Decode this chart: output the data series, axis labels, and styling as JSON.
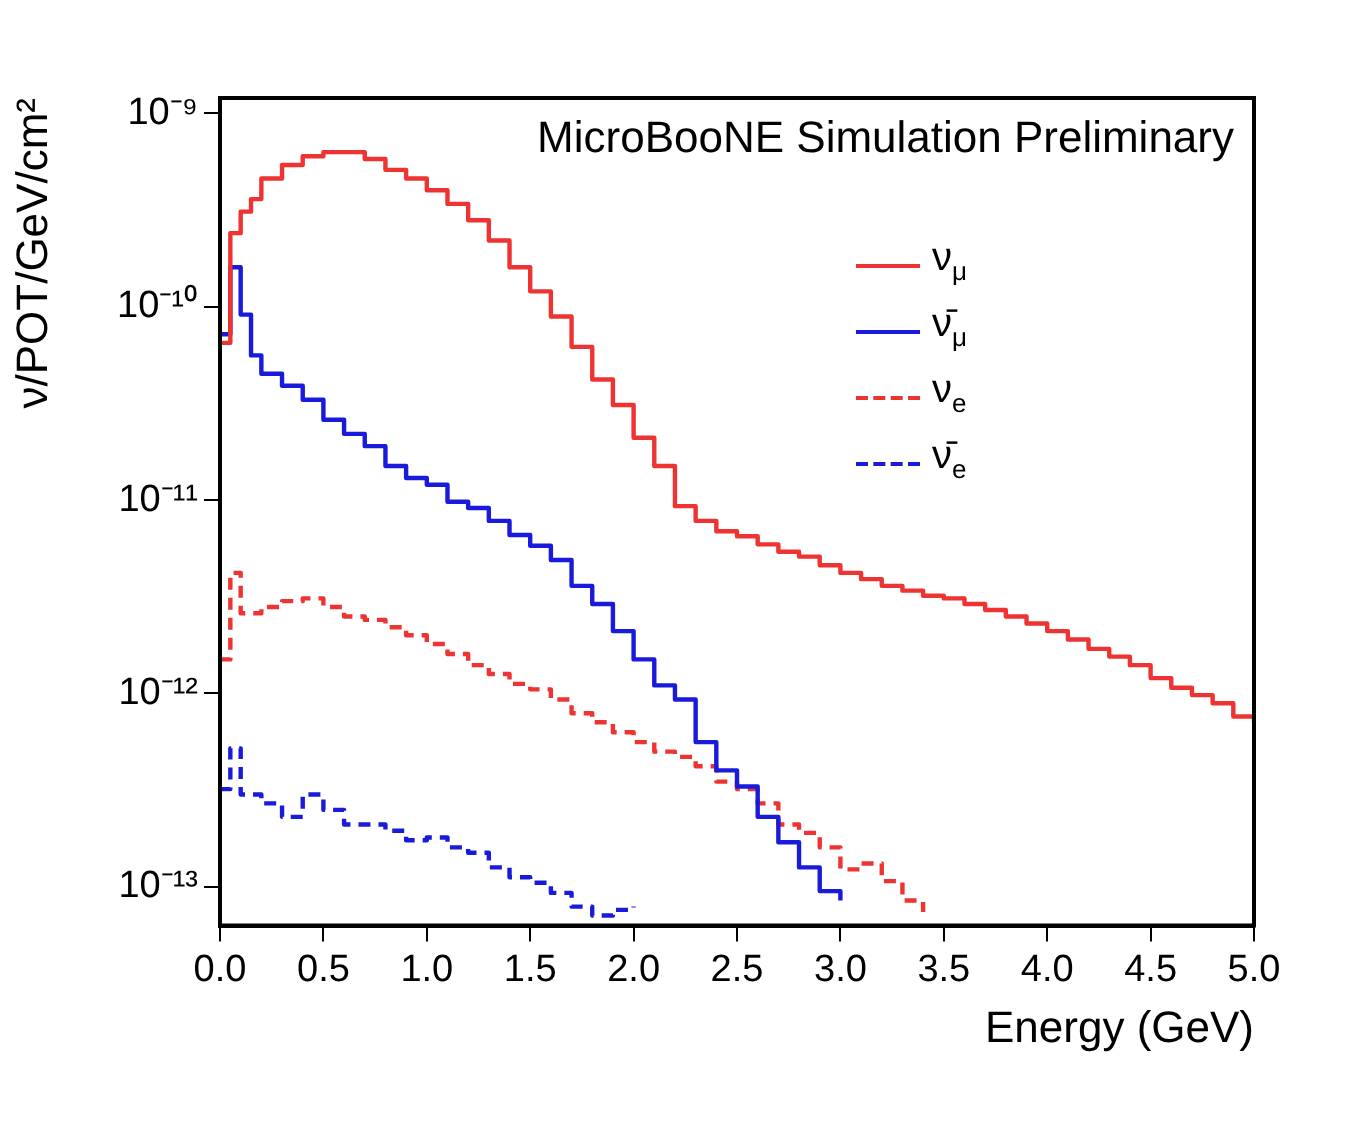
{
  "chart_data": {
    "type": "step",
    "xlabel": "Energy (GeV)",
    "ylabel": "ν/POT/GeV/cm²",
    "log": "y",
    "xlim": [
      0,
      5
    ],
    "ylim": [
      6.3e-14,
      1.2e-09
    ],
    "xticks": [
      {
        "value": 0,
        "label": "0.0"
      },
      0.5,
      {
        "value": 1,
        "label": "1.0"
      },
      1.5,
      {
        "value": 2,
        "label": "2.0"
      },
      2.5,
      {
        "value": 3,
        "label": "3.0"
      },
      3.5,
      {
        "value": 4,
        "label": "4.0"
      },
      4.5,
      {
        "value": 5,
        "label": "5.0"
      }
    ],
    "yticks": [
      {
        "value": 1e-13,
        "label": "10⁻¹³"
      },
      {
        "value": 1e-12,
        "label": "10⁻¹²"
      },
      {
        "value": 1e-11,
        "label": "10⁻¹¹"
      },
      {
        "value": 1e-10,
        "label": "10⁻¹⁰"
      },
      {
        "value": 1e-09,
        "label": "10⁻⁹"
      }
    ],
    "grid": false,
    "legend": "top right",
    "annotations": [
      "MicroBooNE Simulation Preliminary"
    ],
    "series": [
      {
        "name": "ν$_{μ}$",
        "color": "#ee3333",
        "line_style": "solid",
        "x": [
          0,
          0.05,
          0.1,
          0.15,
          0.2,
          0.3,
          0.4,
          0.5,
          0.6,
          0.7,
          0.8,
          0.9,
          1.0,
          1.1,
          1.2,
          1.3,
          1.4,
          1.5,
          1.6,
          1.7,
          1.8,
          1.9,
          2.0,
          2.1,
          2.2,
          2.3,
          2.4,
          2.5,
          2.6,
          2.7,
          2.8,
          2.9,
          3.0,
          3.1,
          3.2,
          3.3,
          3.4,
          3.5,
          3.6,
          3.7,
          3.8,
          3.9,
          4.0,
          4.1,
          4.2,
          4.3,
          4.4,
          4.5,
          4.6,
          4.7,
          4.8,
          4.9,
          5.0
        ],
        "values": [
          6.5e-11,
          2.4e-10,
          3.1e-10,
          3.6e-10,
          4.6e-10,
          5.4e-10,
          6e-10,
          6.3e-10,
          6.3e-10,
          5.8e-10,
          5.1e-10,
          4.6e-10,
          4e-10,
          3.4e-10,
          2.8e-10,
          2.2e-10,
          1.6e-10,
          1.2e-10,
          8.9e-11,
          6.2e-11,
          4.2e-11,
          3.1e-11,
          2.1e-11,
          1.5e-11,
          9.3e-12,
          7.8e-12,
          6.9e-12,
          6.5e-12,
          5.9e-12,
          5.4e-12,
          5.1e-12,
          4.6e-12,
          4.2e-12,
          3.9e-12,
          3.6e-12,
          3.4e-12,
          3.2e-12,
          3.1e-12,
          2.9e-12,
          2.7e-12,
          2.5e-12,
          2.3e-12,
          2.1e-12,
          1.9e-12,
          1.7e-12,
          1.55e-12,
          1.4e-12,
          1.2e-12,
          1.07e-12,
          9.8e-13,
          8.9e-13,
          7.6e-13,
          7.1e-13
        ]
      },
      {
        "name": "ν̄$_{μ}$",
        "color": "#1a1adb",
        "line_style": "solid",
        "x": [
          0,
          0.05,
          0.1,
          0.15,
          0.2,
          0.3,
          0.4,
          0.5,
          0.6,
          0.7,
          0.8,
          0.9,
          1.0,
          1.1,
          1.2,
          1.3,
          1.4,
          1.5,
          1.6,
          1.7,
          1.8,
          1.9,
          2.0,
          2.1,
          2.2,
          2.3,
          2.4,
          2.5,
          2.6,
          2.7,
          2.8,
          2.9,
          3.0
        ],
        "values": [
          7.2e-11,
          1.6e-10,
          9.1e-11,
          5.6e-11,
          4.5e-11,
          3.9e-11,
          3.3e-11,
          2.6e-11,
          2.2e-11,
          1.9e-11,
          1.5e-11,
          1.3e-11,
          1.2e-11,
          9.8e-12,
          9.1e-12,
          7.8e-12,
          6.6e-12,
          5.8e-12,
          4.9e-12,
          3.6e-12,
          2.9e-12,
          2.1e-12,
          1.5e-12,
          1.1e-12,
          9.3e-13,
          5.6e-13,
          4e-13,
          3.3e-13,
          2.3e-13,
          1.7e-13,
          1.26e-13,
          9.5e-14,
          8.5e-14
        ]
      },
      {
        "name": "ν$_{e}$",
        "color": "#ee3333",
        "line_style": "dashed",
        "x": [
          0,
          0.05,
          0.1,
          0.2,
          0.3,
          0.4,
          0.5,
          0.6,
          0.7,
          0.8,
          0.9,
          1.0,
          1.1,
          1.2,
          1.3,
          1.4,
          1.5,
          1.6,
          1.7,
          1.8,
          1.9,
          2.0,
          2.1,
          2.2,
          2.3,
          2.4,
          2.5,
          2.6,
          2.7,
          2.8,
          2.9,
          3.0,
          3.1,
          3.2,
          3.3,
          3.4
        ],
        "values": [
          1.5e-12,
          4.2e-12,
          2.6e-12,
          2.8e-12,
          3e-12,
          3.1e-12,
          2.8e-12,
          2.5e-12,
          2.4e-12,
          2.2e-12,
          2e-12,
          1.8e-12,
          1.6e-12,
          1.4e-12,
          1.26e-12,
          1.12e-12,
          1.05e-12,
          9.3e-13,
          7.9e-13,
          7.1e-13,
          6.3e-13,
          5.6e-13,
          5e-13,
          4.7e-13,
          4.2e-13,
          3.5e-13,
          3.2e-13,
          2.7e-13,
          2.1e-13,
          1.9e-13,
          1.6e-13,
          1.23e-13,
          1.32e-13,
          1.07e-13,
          8.5e-14,
          7.4e-14
        ]
      },
      {
        "name": "ν̄$_{e}$",
        "color": "#1a1adb",
        "line_style": "dashed",
        "x": [
          0,
          0.05,
          0.1,
          0.2,
          0.3,
          0.4,
          0.5,
          0.6,
          0.7,
          0.8,
          0.9,
          1.0,
          1.1,
          1.2,
          1.3,
          1.4,
          1.5,
          1.6,
          1.7,
          1.8,
          1.9,
          2.0
        ],
        "values": [
          3.2e-13,
          5.2e-13,
          3e-13,
          2.7e-13,
          2.3e-13,
          3e-13,
          2.5e-13,
          2.1e-13,
          2.1e-13,
          1.95e-13,
          1.74e-13,
          1.8e-13,
          1.6e-13,
          1.5e-13,
          1.26e-13,
          1.12e-13,
          1.05e-13,
          9.3e-14,
          7.9e-14,
          7.1e-14,
          7.6e-14,
          7.9e-14
        ]
      }
    ]
  }
}
